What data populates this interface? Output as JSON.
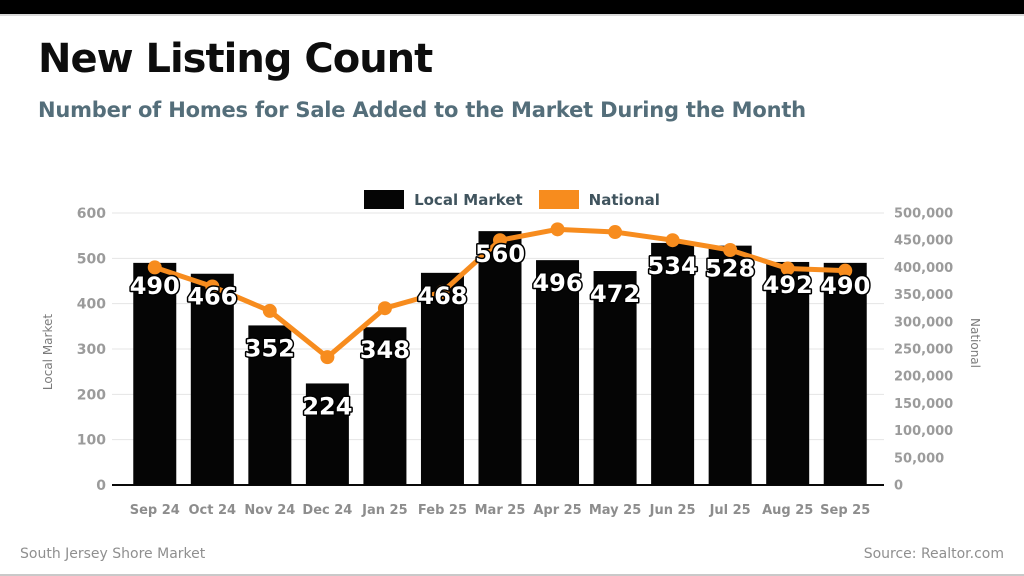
{
  "page": {
    "title": "New Listing Count",
    "subtitle": "Number of Homes for Sale Added to the Market During the Month",
    "footer_left": "South Jersey Shore Market",
    "footer_right": "Source: Realtor.com"
  },
  "colors": {
    "top_bar": "#000000",
    "bar_black": "#050505",
    "accent_orange": "#F78C1E",
    "subtitle_slate": "#546e7a",
    "tick_gray": "#9b9b9b",
    "footer_gray": "#8f8f8f"
  },
  "chart_data": {
    "type": "bar",
    "subtype": "bar+line dual-axis",
    "categories": [
      "Sep 24",
      "Oct 24",
      "Nov 24",
      "Dec 24",
      "Jan 25",
      "Feb 25",
      "Mar 25",
      "Apr 25",
      "May 25",
      "Jun 25",
      "Jul 25",
      "Aug 25",
      "Sep 25"
    ],
    "series": [
      {
        "name": "Local Market",
        "type": "bar",
        "axis": "left",
        "color": "#050505",
        "values": [
          490,
          466,
          352,
          224,
          348,
          468,
          560,
          496,
          472,
          534,
          528,
          492,
          490
        ]
      },
      {
        "name": "National",
        "type": "line",
        "axis": "right",
        "color": "#F78C1E",
        "values": [
          400000,
          365000,
          320000,
          235000,
          325000,
          355000,
          450000,
          470000,
          465000,
          450000,
          432000,
          398000,
          394000
        ]
      }
    ],
    "left_axis": {
      "label": "Local Market",
      "min": 0,
      "max": 600,
      "step": 100,
      "ticks": [
        "0",
        "100",
        "200",
        "300",
        "400",
        "500",
        "600"
      ]
    },
    "right_axis": {
      "label": "National",
      "min": 0,
      "max": 500000,
      "step": 50000,
      "ticks": [
        "0",
        "50,000",
        "100,000",
        "150,000",
        "200,000",
        "250,000",
        "300,000",
        "350,000",
        "400,000",
        "450,000",
        "500,000"
      ]
    },
    "legend": [
      {
        "label": "Local Market",
        "color": "#050505"
      },
      {
        "label": "National",
        "color": "#F78C1E"
      }
    ],
    "grid": true,
    "legend_position": "top-center",
    "bar_value_labels": "white, bold, inside top of bars"
  }
}
